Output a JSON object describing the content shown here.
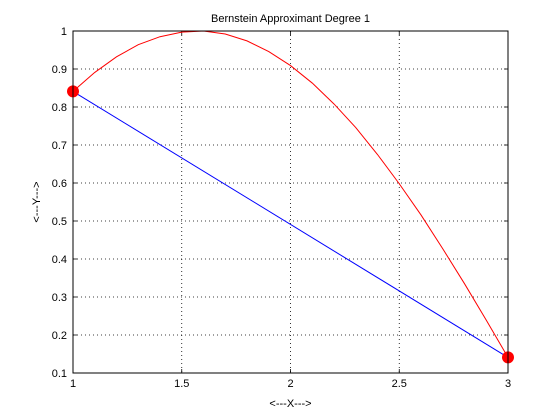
{
  "chart_data": {
    "type": "line",
    "title": "Bernstein Approximant Degree 1",
    "xlabel": "<---X--->",
    "ylabel": "<---Y--->",
    "xlim": [
      1,
      3
    ],
    "ylim": [
      0.1,
      1
    ],
    "xticks": [
      1,
      1.5,
      2,
      2.5,
      3
    ],
    "xtick_labels": [
      "1",
      "1.5",
      "2",
      "2.5",
      "3"
    ],
    "yticks": [
      0.1,
      0.2,
      0.3,
      0.4,
      0.5,
      0.6,
      0.7,
      0.8,
      0.9,
      1
    ],
    "ytick_labels": [
      "0.1",
      "0.2",
      "0.3",
      "0.4",
      "0.5",
      "0.6",
      "0.7",
      "0.8",
      "0.9",
      "1"
    ],
    "grid": true,
    "series": [
      {
        "color": "#ff0000",
        "x": [
          1,
          1.1,
          1.2,
          1.3,
          1.4,
          1.5,
          1.6,
          1.7,
          1.8,
          1.9,
          2,
          2.1,
          2.2,
          2.3,
          2.4,
          2.5,
          2.6,
          2.7,
          2.8,
          2.9,
          3
        ],
        "y": [
          0.841,
          0.891,
          0.932,
          0.964,
          0.985,
          0.997,
          1.0,
          0.992,
          0.974,
          0.946,
          0.909,
          0.863,
          0.808,
          0.746,
          0.675,
          0.598,
          0.516,
          0.427,
          0.335,
          0.239,
          0.141
        ]
      },
      {
        "color": "#0000ff",
        "x": [
          1,
          3
        ],
        "y": [
          0.841,
          0.141
        ]
      }
    ],
    "markers": {
      "color": "#ff0000",
      "x": [
        1,
        3
      ],
      "y": [
        0.841,
        0.141
      ]
    }
  }
}
